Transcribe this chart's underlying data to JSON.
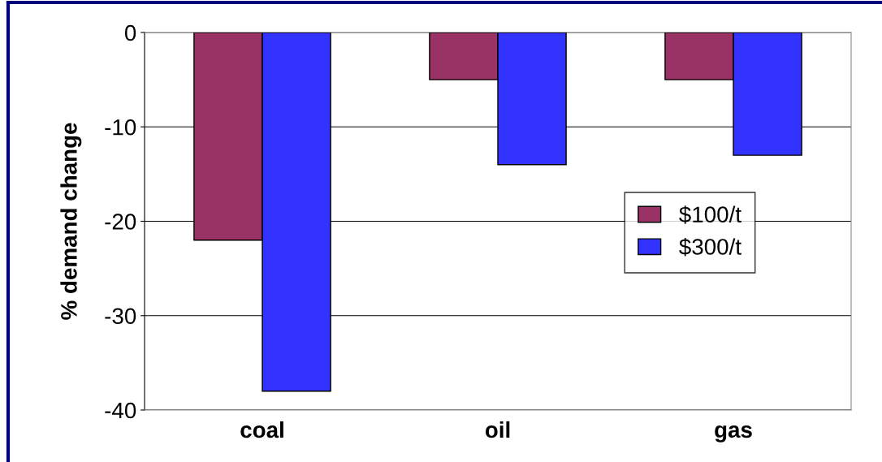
{
  "chart_data": {
    "type": "bar",
    "ylabel": "% demand change",
    "categories": [
      "coal",
      "oil",
      "gas"
    ],
    "series": [
      {
        "name": "$100/t",
        "color": "#993366",
        "values": [
          -22,
          -5,
          -5
        ]
      },
      {
        "name": "$300/t",
        "color": "#3333ff",
        "values": [
          -38,
          -14,
          -13
        ]
      }
    ],
    "ylim": [
      -40,
      0
    ],
    "yticks": [
      -40,
      -30,
      -20,
      -10,
      0
    ],
    "grid": "y",
    "legend": "right"
  }
}
